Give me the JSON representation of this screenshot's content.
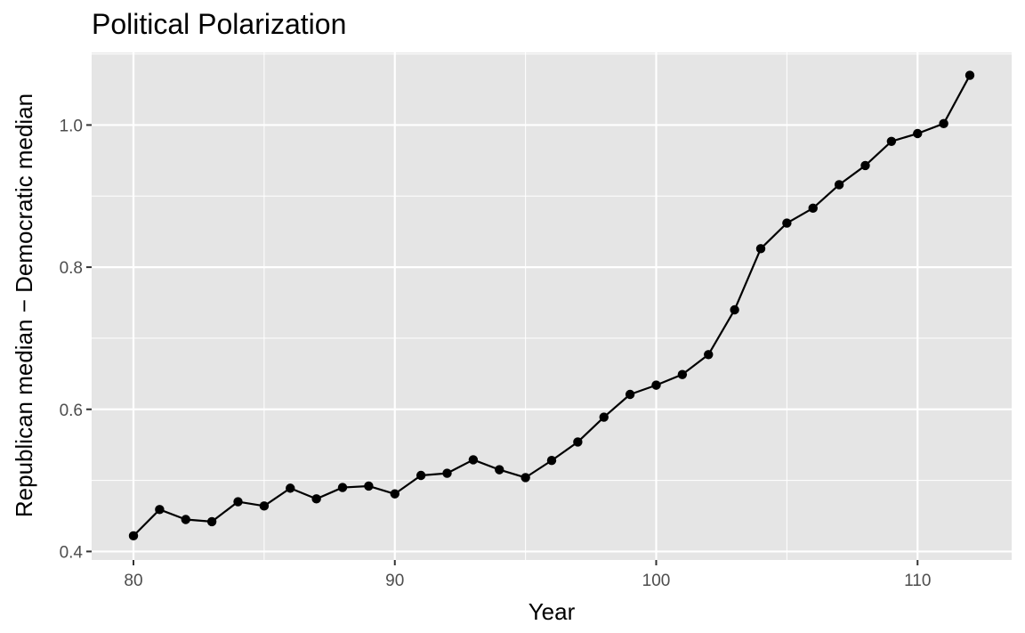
{
  "chart_data": {
    "type": "line",
    "title": "Political Polarization",
    "xlabel": "Year",
    "ylabel": "Republican median − Democratic median",
    "xlim": [
      78.4,
      113.6
    ],
    "ylim": [
      0.388,
      1.102
    ],
    "x_ticks": [
      80,
      90,
      100,
      110
    ],
    "x_tick_labels": [
      "80",
      "90",
      "100",
      "110"
    ],
    "y_ticks": [
      0.4,
      0.6,
      0.8,
      1.0
    ],
    "y_tick_labels": [
      "0.4",
      "0.6",
      "0.8",
      "1.0"
    ],
    "grid": true,
    "panel_background": "#e5e5e5",
    "grid_color": "#ffffff",
    "line_color": "#000000",
    "series": [
      {
        "x": [
          80,
          81,
          82,
          83,
          84,
          85,
          86,
          87,
          88,
          89,
          90,
          91,
          92,
          93,
          94,
          95,
          96,
          97,
          98,
          99,
          100,
          101,
          102,
          103,
          104,
          105,
          106,
          107,
          108,
          109,
          110,
          111,
          112
        ],
        "values": [
          0.422,
          0.459,
          0.445,
          0.442,
          0.47,
          0.464,
          0.489,
          0.474,
          0.49,
          0.492,
          0.481,
          0.507,
          0.51,
          0.529,
          0.515,
          0.504,
          0.528,
          0.554,
          0.589,
          0.621,
          0.634,
          0.649,
          0.677,
          0.74,
          0.826,
          0.862,
          0.883,
          0.916,
          0.943,
          0.977,
          0.988,
          1.002,
          1.07
        ]
      }
    ]
  }
}
